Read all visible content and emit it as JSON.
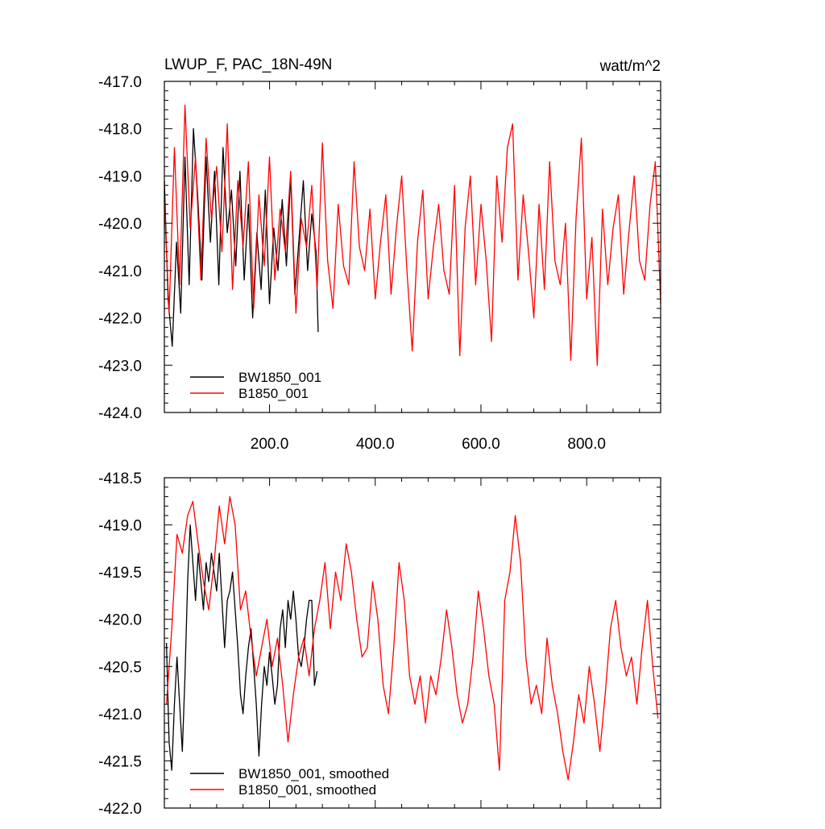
{
  "figure": {
    "top_title_left": "LWUP_F, PAC_18N-49N",
    "top_title_right": "watt/m^2"
  },
  "chart_data": [
    {
      "type": "line",
      "title": "LWUP_F, PAC_18N-49N",
      "units": "watt/m^2",
      "xlim": [
        1,
        940
      ],
      "ylim": [
        -424.0,
        -417.0
      ],
      "ytick_labels": [
        "-417.0",
        "-418.0",
        "-419.0",
        "-420.0",
        "-421.0",
        "-422.0",
        "-423.0",
        "-424.0"
      ],
      "yticks": [
        -417,
        -418,
        -419,
        -420,
        -421,
        -422,
        -423,
        -424
      ],
      "xtick_labels": [
        "200.0",
        "400.0",
        "600.0",
        "800.0"
      ],
      "xticks": [
        200,
        400,
        600,
        800
      ],
      "legend": {
        "position": "bottom-left"
      },
      "series": [
        {
          "name": "BW1850_001",
          "color": "#000000",
          "x": [
            1,
            8,
            16,
            24,
            32,
            40,
            48,
            56,
            64,
            72,
            80,
            88,
            96,
            104,
            112,
            120,
            128,
            136,
            144,
            152,
            160,
            168,
            176,
            184,
            192,
            200,
            208,
            216,
            224,
            232,
            240,
            248,
            256,
            264,
            272,
            280,
            288,
            292
          ],
          "values": [
            -419.1,
            -421.6,
            -422.6,
            -420.4,
            -421.9,
            -418.6,
            -421.3,
            -418.0,
            -419.4,
            -421.2,
            -418.6,
            -420.4,
            -418.9,
            -421.3,
            -418.4,
            -420.2,
            -419.3,
            -420.9,
            -418.9,
            -421.2,
            -419.6,
            -422.0,
            -420.2,
            -421.4,
            -419.3,
            -421.7,
            -420.1,
            -421.0,
            -419.5,
            -420.9,
            -419.0,
            -421.5,
            -420.3,
            -419.1,
            -421.0,
            -419.8,
            -420.6,
            -422.3
          ]
        },
        {
          "name": "B1850_001",
          "color": "#ff0000",
          "x": [
            1,
            10,
            20,
            30,
            40,
            50,
            60,
            70,
            80,
            90,
            100,
            110,
            120,
            130,
            140,
            150,
            160,
            170,
            180,
            190,
            200,
            210,
            220,
            230,
            240,
            250,
            260,
            270,
            280,
            290,
            300,
            310,
            320,
            330,
            340,
            350,
            360,
            370,
            380,
            390,
            400,
            410,
            420,
            430,
            440,
            450,
            460,
            470,
            480,
            490,
            500,
            510,
            520,
            530,
            540,
            550,
            560,
            570,
            580,
            590,
            600,
            610,
            620,
            630,
            640,
            650,
            660,
            670,
            680,
            690,
            700,
            710,
            720,
            730,
            740,
            750,
            760,
            770,
            780,
            790,
            800,
            810,
            820,
            830,
            840,
            850,
            860,
            870,
            880,
            890,
            900,
            910,
            920,
            930,
            940
          ],
          "values": [
            -419.5,
            -421.9,
            -418.4,
            -421.3,
            -417.5,
            -420.1,
            -418.6,
            -421.2,
            -418.2,
            -419.9,
            -418.8,
            -420.6,
            -417.9,
            -421.4,
            -419.1,
            -420.5,
            -418.7,
            -421.8,
            -419.4,
            -420.9,
            -418.6,
            -421.2,
            -419.7,
            -420.6,
            -418.9,
            -421.9,
            -419.9,
            -420.5,
            -419.2,
            -421.4,
            -418.3,
            -420.8,
            -421.8,
            -419.6,
            -420.9,
            -421.3,
            -418.7,
            -420.5,
            -421.0,
            -419.7,
            -421.6,
            -420.4,
            -419.4,
            -421.5,
            -420.1,
            -419.0,
            -421.0,
            -422.7,
            -420.4,
            -419.3,
            -421.6,
            -420.5,
            -419.6,
            -421.0,
            -421.5,
            -419.2,
            -422.8,
            -420.1,
            -419.0,
            -421.3,
            -419.6,
            -420.8,
            -422.5,
            -419.0,
            -420.4,
            -418.4,
            -417.9,
            -421.2,
            -419.4,
            -420.6,
            -422.0,
            -419.6,
            -421.4,
            -418.7,
            -420.8,
            -421.3,
            -420.0,
            -422.9,
            -419.9,
            -418.2,
            -421.6,
            -420.3,
            -423.0,
            -419.7,
            -421.3,
            -420.1,
            -419.4,
            -421.5,
            -420.2,
            -419.0,
            -420.8,
            -421.2,
            -419.6,
            -418.7,
            -421.7
          ]
        }
      ]
    },
    {
      "type": "line",
      "xlim": [
        1,
        940
      ],
      "ylim": [
        -422.0,
        -418.5
      ],
      "ytick_labels": [
        "-418.5",
        "-419.0",
        "-419.5",
        "-420.0",
        "-420.5",
        "-421.0",
        "-421.5",
        "-422.0"
      ],
      "yticks": [
        -418.5,
        -419,
        -419.5,
        -420,
        -420.5,
        -421,
        -421.5,
        -422
      ],
      "xticks": [
        200,
        400,
        600,
        800
      ],
      "legend": {
        "position": "bottom-left"
      },
      "series": [
        {
          "name": "BW1850_001, smoothed",
          "color": "#000000",
          "x": [
            5,
            10,
            15,
            20,
            25,
            30,
            35,
            40,
            45,
            50,
            55,
            60,
            65,
            70,
            75,
            80,
            85,
            90,
            95,
            100,
            105,
            110,
            115,
            120,
            125,
            130,
            135,
            140,
            145,
            150,
            155,
            160,
            165,
            170,
            175,
            180,
            185,
            190,
            195,
            200,
            205,
            210,
            215,
            220,
            225,
            230,
            235,
            240,
            245,
            250,
            255,
            260,
            265,
            270,
            275,
            280,
            285,
            290
          ],
          "values": [
            -420.25,
            -421.3,
            -421.6,
            -420.9,
            -420.4,
            -420.9,
            -421.4,
            -420.6,
            -419.6,
            -419.0,
            -419.4,
            -419.8,
            -419.3,
            -419.6,
            -419.9,
            -419.4,
            -419.6,
            -419.3,
            -419.5,
            -419.7,
            -419.3,
            -419.8,
            -420.3,
            -419.8,
            -419.7,
            -419.5,
            -419.9,
            -420.3,
            -420.8,
            -421.0,
            -420.6,
            -420.3,
            -420.1,
            -420.5,
            -420.9,
            -421.45,
            -420.9,
            -420.5,
            -420.7,
            -420.35,
            -420.6,
            -420.9,
            -420.7,
            -420.1,
            -419.9,
            -420.3,
            -419.8,
            -420.0,
            -419.7,
            -420.0,
            -420.4,
            -420.5,
            -420.3,
            -420.0,
            -419.8,
            -419.8,
            -420.7,
            -420.55
          ]
        },
        {
          "name": "B1850_001, smoothed",
          "color": "#ff0000",
          "x": [
            5,
            15,
            25,
            35,
            45,
            55,
            65,
            75,
            85,
            95,
            105,
            115,
            125,
            135,
            145,
            155,
            165,
            175,
            185,
            195,
            205,
            215,
            225,
            235,
            245,
            255,
            265,
            275,
            285,
            295,
            305,
            315,
            325,
            335,
            345,
            355,
            365,
            375,
            385,
            395,
            405,
            415,
            425,
            435,
            445,
            455,
            465,
            475,
            485,
            495,
            505,
            515,
            525,
            535,
            545,
            555,
            565,
            575,
            585,
            595,
            605,
            615,
            625,
            635,
            645,
            655,
            665,
            675,
            685,
            695,
            705,
            715,
            725,
            735,
            745,
            755,
            765,
            775,
            785,
            795,
            805,
            815,
            825,
            835,
            845,
            855,
            865,
            875,
            885,
            895,
            905,
            915,
            925,
            935
          ],
          "values": [
            -420.9,
            -420.1,
            -419.1,
            -419.3,
            -418.9,
            -418.75,
            -419.2,
            -419.6,
            -419.9,
            -419.4,
            -418.8,
            -419.2,
            -418.7,
            -419.0,
            -419.9,
            -419.7,
            -420.2,
            -420.6,
            -420.3,
            -420.0,
            -420.5,
            -420.2,
            -420.7,
            -421.3,
            -420.8,
            -420.4,
            -420.2,
            -420.6,
            -420.1,
            -419.8,
            -419.4,
            -420.1,
            -419.5,
            -419.8,
            -419.2,
            -419.5,
            -420.0,
            -420.4,
            -420.3,
            -419.6,
            -420.0,
            -420.7,
            -421.0,
            -420.3,
            -419.4,
            -419.8,
            -420.6,
            -420.9,
            -420.6,
            -421.1,
            -420.6,
            -420.8,
            -420.4,
            -419.9,
            -420.3,
            -420.8,
            -421.1,
            -420.9,
            -420.4,
            -419.7,
            -420.1,
            -420.6,
            -420.9,
            -421.6,
            -419.8,
            -419.5,
            -418.9,
            -419.4,
            -420.4,
            -420.9,
            -420.7,
            -421.0,
            -420.2,
            -420.7,
            -421.0,
            -421.4,
            -421.7,
            -421.3,
            -420.8,
            -421.1,
            -420.5,
            -420.9,
            -421.4,
            -420.8,
            -420.1,
            -419.8,
            -420.3,
            -420.6,
            -420.4,
            -420.9,
            -420.3,
            -419.8,
            -420.5,
            -421.05
          ]
        }
      ]
    }
  ]
}
